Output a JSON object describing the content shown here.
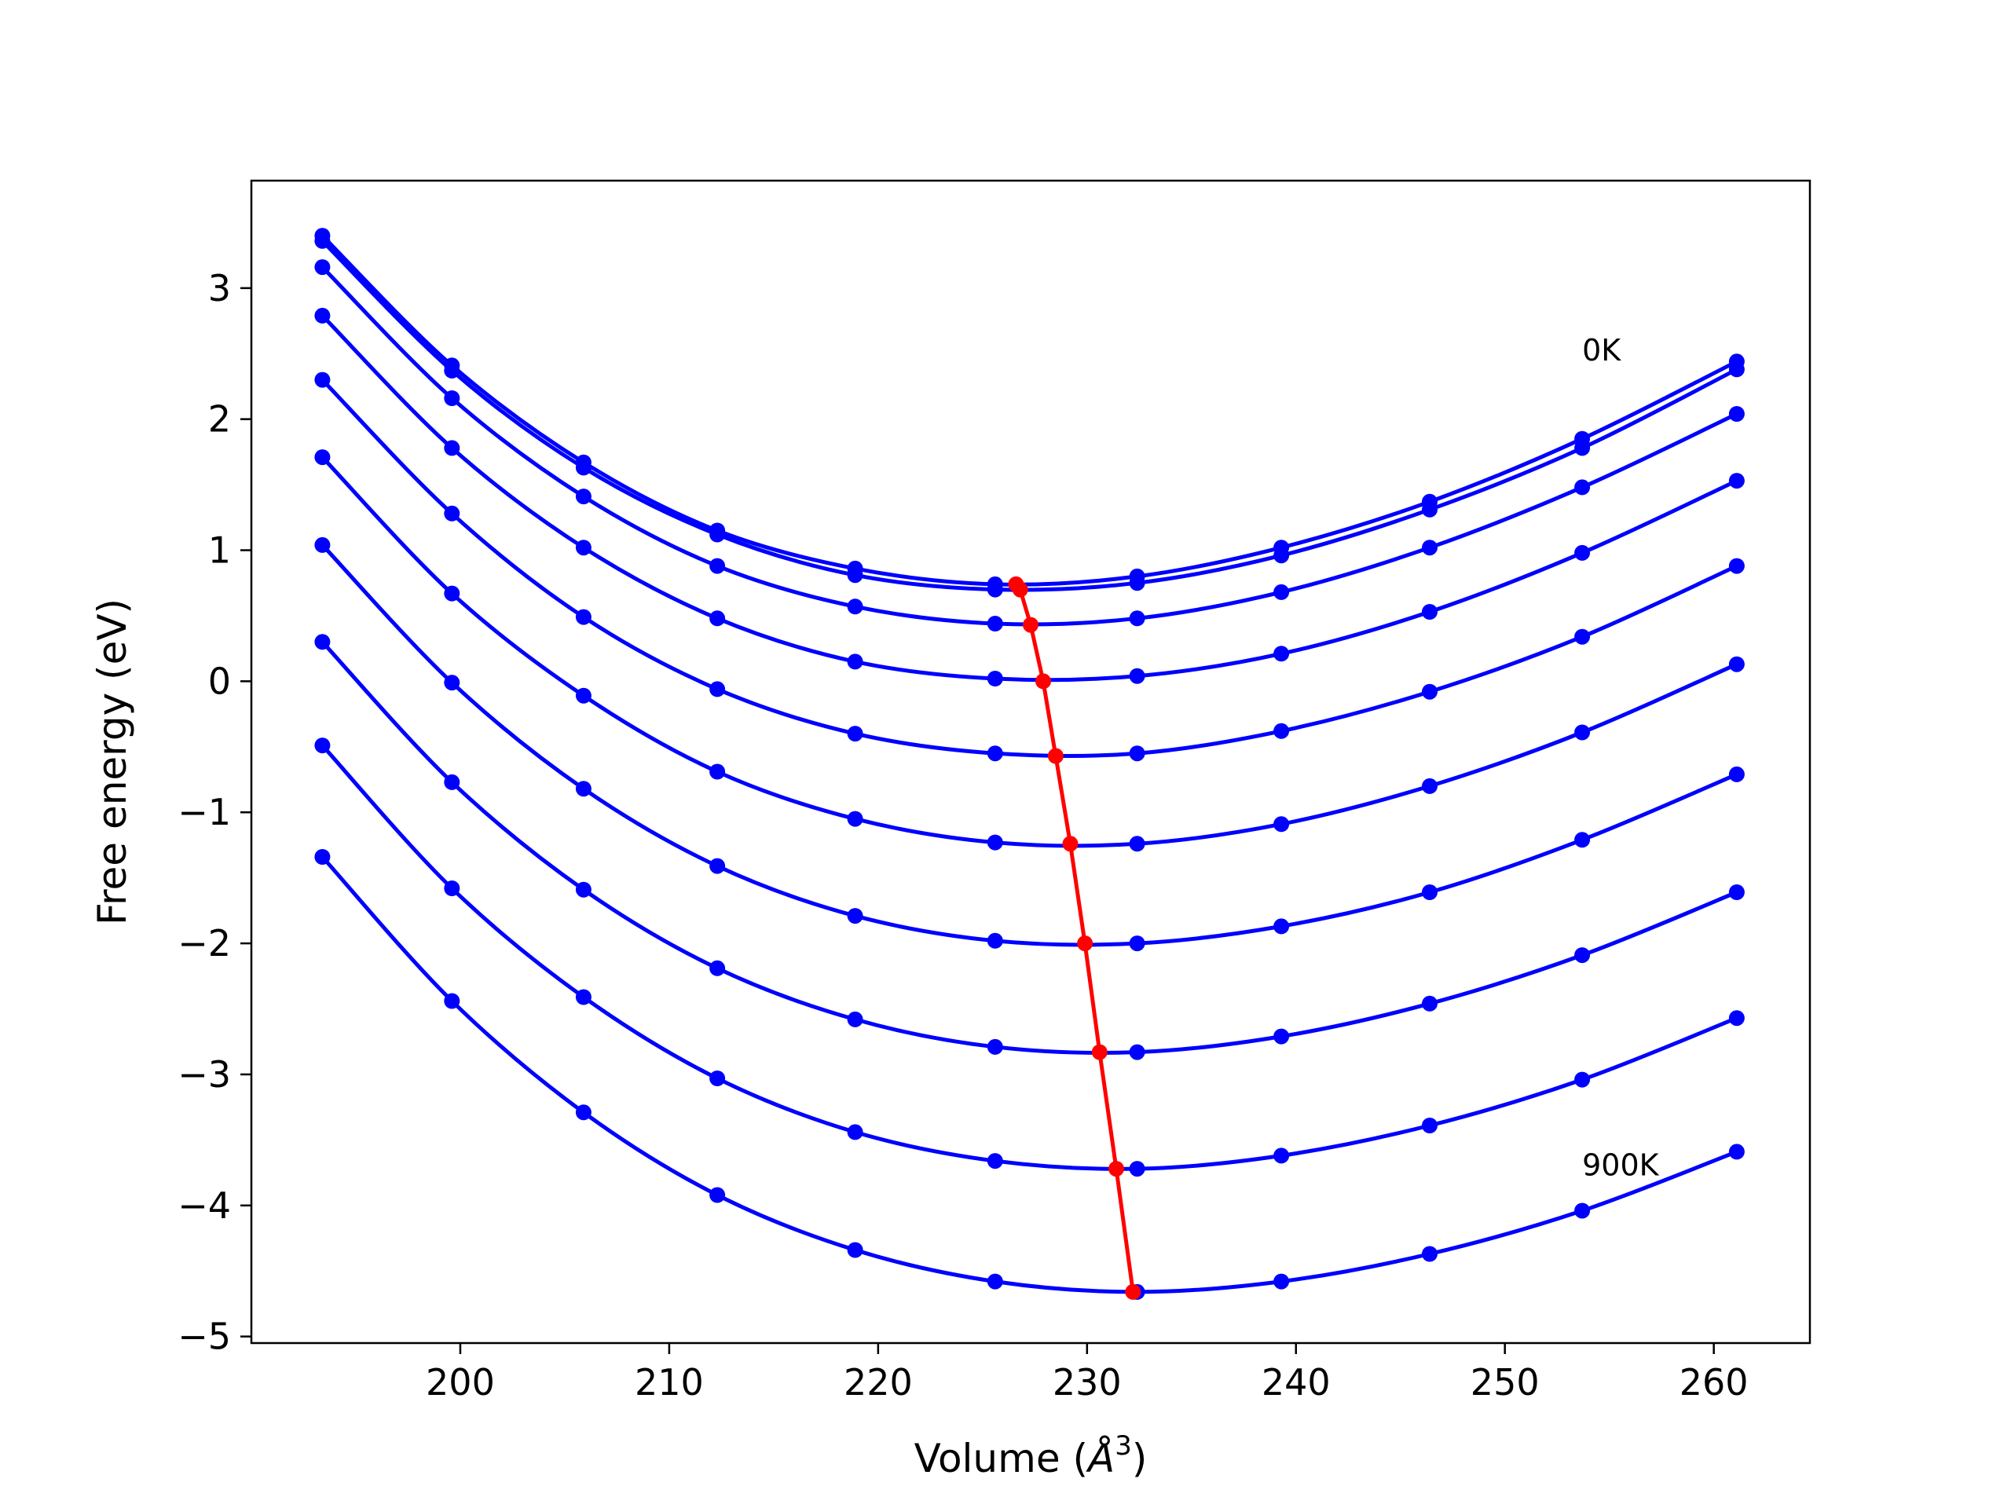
{
  "chart_data": {
    "type": "line",
    "title": "",
    "xlabel": "Volume (",
    "xlabel_symbol": "Å",
    "xlabel_exponent": "3",
    "xlabel_close": ")",
    "ylabel": "Free energy (eV)",
    "xlim": [
      190,
      264.6
    ],
    "ylim": [
      -5.05,
      3.82
    ],
    "xticks": [
      200,
      210,
      220,
      230,
      240,
      250,
      260
    ],
    "yticks": [
      3,
      2,
      1,
      0,
      -1,
      -2,
      -3,
      -4,
      -5
    ],
    "ytick_labels": [
      "3",
      "2",
      "1",
      "0",
      "−1",
      "−2",
      "−3",
      "−4",
      "−5"
    ],
    "grid": false,
    "legend": "none",
    "x": [
      193.4,
      199.6,
      205.9,
      212.3,
      218.9,
      225.6,
      232.4,
      239.3,
      246.4,
      253.7,
      261.1
    ],
    "series": [
      {
        "values": [
          3.4,
          2.41,
          1.67,
          1.15,
          0.86,
          0.74,
          0.8,
          1.02,
          1.37,
          1.85,
          2.44
        ]
      },
      {
        "values": [
          3.36,
          2.37,
          1.63,
          1.12,
          0.81,
          0.7,
          0.75,
          0.96,
          1.31,
          1.78,
          2.38
        ]
      },
      {
        "values": [
          3.16,
          2.16,
          1.41,
          0.88,
          0.57,
          0.44,
          0.48,
          0.68,
          1.02,
          1.48,
          2.04
        ]
      },
      {
        "values": [
          2.79,
          1.78,
          1.02,
          0.48,
          0.15,
          0.02,
          0.04,
          0.21,
          0.53,
          0.98,
          1.53
        ]
      },
      {
        "values": [
          2.3,
          1.28,
          0.49,
          -0.06,
          -0.4,
          -0.55,
          -0.55,
          -0.38,
          -0.08,
          0.34,
          0.88
        ]
      },
      {
        "values": [
          1.71,
          0.67,
          -0.11,
          -0.69,
          -1.05,
          -1.23,
          -1.24,
          -1.09,
          -0.8,
          -0.39,
          0.13
        ]
      },
      {
        "values": [
          1.04,
          -0.01,
          -0.82,
          -1.41,
          -1.79,
          -1.98,
          -2.0,
          -1.87,
          -1.61,
          -1.21,
          -0.71
        ]
      },
      {
        "values": [
          0.3,
          -0.77,
          -1.59,
          -2.19,
          -2.58,
          -2.79,
          -2.83,
          -2.71,
          -2.46,
          -2.09,
          -1.61
        ]
      },
      {
        "values": [
          -0.49,
          -1.58,
          -2.41,
          -3.03,
          -3.44,
          -3.66,
          -3.72,
          -3.62,
          -3.39,
          -3.04,
          -2.57
        ]
      },
      {
        "values": [
          -1.34,
          -2.44,
          -3.29,
          -3.92,
          -4.34,
          -4.58,
          -4.66,
          -4.58,
          -4.37,
          -4.04,
          -3.59
        ]
      }
    ],
    "minima": {
      "x": [
        226.6,
        226.8,
        227.3,
        227.9,
        228.5,
        229.2,
        229.9,
        230.6,
        231.4,
        232.2
      ],
      "y": [
        0.74,
        0.7,
        0.43,
        0.0,
        -0.57,
        -1.24,
        -2.0,
        -2.83,
        -3.72,
        -4.66
      ]
    },
    "annotations": [
      {
        "text": "0K",
        "x": 253.7,
        "y": 2.52
      },
      {
        "text": "900K",
        "x": 253.7,
        "y": -3.7
      }
    ],
    "colors": {
      "curves": "#0000ff",
      "minima": "#ff0000",
      "axes": "#000000",
      "background": "#ffffff"
    }
  }
}
